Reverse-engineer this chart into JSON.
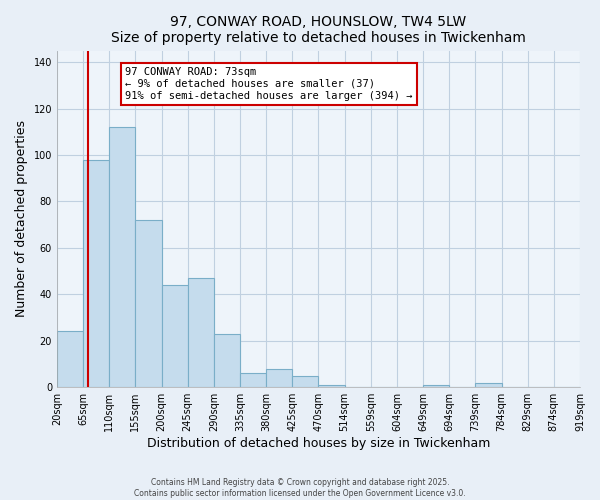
{
  "title": "97, CONWAY ROAD, HOUNSLOW, TW4 5LW",
  "subtitle": "Size of property relative to detached houses in Twickenham",
  "bar_values": [
    24,
    98,
    112,
    72,
    44,
    47,
    23,
    6,
    8,
    5,
    1,
    0,
    0,
    0,
    1,
    0,
    2,
    0,
    0,
    0
  ],
  "categories": [
    "20sqm",
    "65sqm",
    "110sqm",
    "155sqm",
    "200sqm",
    "245sqm",
    "290sqm",
    "335sqm",
    "380sqm",
    "425sqm",
    "470sqm",
    "514sqm",
    "559sqm",
    "604sqm",
    "649sqm",
    "694sqm",
    "739sqm",
    "784sqm",
    "829sqm",
    "874sqm",
    "919sqm"
  ],
  "bar_color": "#c5dced",
  "bar_edge_color": "#7aaec8",
  "property_line_color": "#cc0000",
  "xlabel": "Distribution of detached houses by size in Twickenham",
  "ylabel": "Number of detached properties",
  "ylim": [
    0,
    145
  ],
  "yticks": [
    0,
    20,
    40,
    60,
    80,
    100,
    120,
    140
  ],
  "annotation_title": "97 CONWAY ROAD: 73sqm",
  "annotation_line1": "← 9% of detached houses are smaller (37)",
  "annotation_line2": "91% of semi-detached houses are larger (394) →",
  "footer1": "Contains HM Land Registry data © Crown copyright and database right 2025.",
  "footer2": "Contains public sector information licensed under the Open Government Licence v3.0.",
  "bg_color": "#e8eff7",
  "plot_bg_color": "#eef4fa",
  "grid_color": "#c0d0e0"
}
